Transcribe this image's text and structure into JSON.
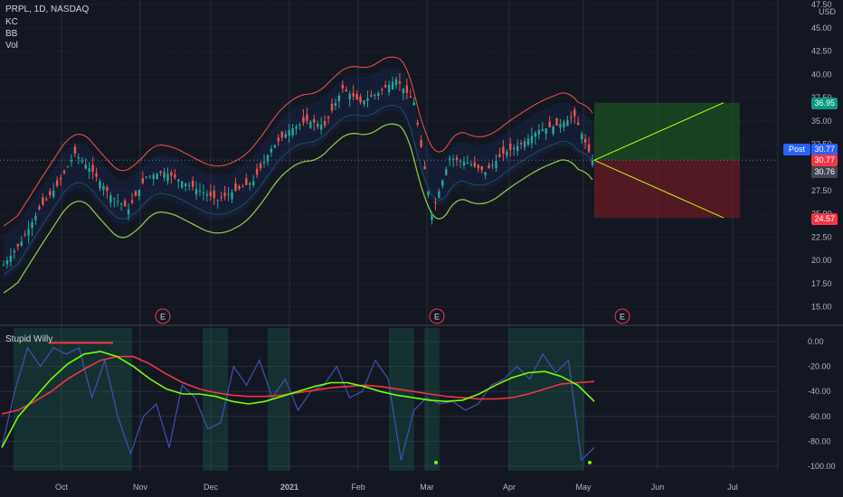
{
  "legend": {
    "symbol": "PRPL, 1D, NASDAQ",
    "kc": "KC",
    "bb": "BB",
    "vol": "Vol",
    "oscillator": "Stupid Willy"
  },
  "axis": {
    "currency": "USD",
    "price_ticks": [
      "47.50",
      "45.00",
      "42.50",
      "40.00",
      "37.50",
      "35.00",
      "32.50",
      "30.00",
      "27.50",
      "25.00",
      "22.50",
      "20.00",
      "17.50",
      "15.00"
    ],
    "osc_ticks": [
      "0.00",
      "-20.00",
      "-40.00",
      "-60.00",
      "-80.00",
      "-100.00"
    ],
    "months": [
      "Oct",
      "Nov",
      "Dec",
      "2021",
      "Feb",
      "Mar",
      "Apr",
      "May",
      "Jun",
      "Jul"
    ]
  },
  "tags": {
    "target": "36.95",
    "post_label": "Post",
    "post_value": "30.77",
    "last": "30.77",
    "prev": "30.76",
    "stop": "24.57"
  },
  "earnings_marker": "E",
  "colors": {
    "up": "#26a69a",
    "down": "#ef5350",
    "kc": "#ef5350",
    "bb": "#8bc34a",
    "osc_line": "#3f51b5",
    "osc_fast": "#76ff03",
    "osc_slow": "#f23645",
    "target_zone": "#1b5e20",
    "stop_zone": "#6d1b22"
  },
  "chart_data": {
    "type": "candlestick",
    "symbol": "PRPL",
    "interval": "1D",
    "exchange": "NASDAQ",
    "price_range": [
      13.5,
      48
    ],
    "position": {
      "entry": 30.77,
      "target": 36.95,
      "stop": 24.57
    },
    "close_path": [
      {
        "date": "2020-09-14",
        "close": 19.5
      },
      {
        "date": "2020-09-21",
        "close": 22.0
      },
      {
        "date": "2020-09-28",
        "close": 25.5
      },
      {
        "date": "2020-10-05",
        "close": 28.0
      },
      {
        "date": "2020-10-12",
        "close": 31.5
      },
      {
        "date": "2020-10-19",
        "close": 29.5
      },
      {
        "date": "2020-10-26",
        "close": 27.0
      },
      {
        "date": "2020-11-02",
        "close": 25.5
      },
      {
        "date": "2020-11-09",
        "close": 29.0
      },
      {
        "date": "2020-11-16",
        "close": 29.5
      },
      {
        "date": "2020-11-23",
        "close": 28.5
      },
      {
        "date": "2020-11-30",
        "close": 27.5
      },
      {
        "date": "2020-12-07",
        "close": 26.5
      },
      {
        "date": "2020-12-14",
        "close": 27.5
      },
      {
        "date": "2020-12-21",
        "close": 28.5
      },
      {
        "date": "2020-12-28",
        "close": 32.0
      },
      {
        "date": "2021-01-04",
        "close": 34.0
      },
      {
        "date": "2021-01-11",
        "close": 35.0
      },
      {
        "date": "2021-01-18",
        "close": 34.5
      },
      {
        "date": "2021-01-25",
        "close": 38.5
      },
      {
        "date": "2021-02-01",
        "close": 37.0
      },
      {
        "date": "2021-02-08",
        "close": 38.0
      },
      {
        "date": "2021-02-15",
        "close": 39.5
      },
      {
        "date": "2021-02-22",
        "close": 37.0
      },
      {
        "date": "2021-03-01",
        "close": 25.0
      },
      {
        "date": "2021-03-08",
        "close": 31.0
      },
      {
        "date": "2021-03-15",
        "close": 30.5
      },
      {
        "date": "2021-03-22",
        "close": 29.5
      },
      {
        "date": "2021-03-29",
        "close": 31.5
      },
      {
        "date": "2021-04-05",
        "close": 32.5
      },
      {
        "date": "2021-04-12",
        "close": 34.0
      },
      {
        "date": "2021-04-19",
        "close": 34.5
      },
      {
        "date": "2021-04-26",
        "close": 35.5
      },
      {
        "date": "2021-05-03",
        "close": 30.77
      }
    ],
    "oscillator": {
      "name": "Stupid Willy",
      "range": [
        -100,
        0
      ],
      "values": [
        -85,
        -40,
        -5,
        -20,
        -5,
        -10,
        -5,
        -45,
        -15,
        -60,
        -90,
        -60,
        -50,
        -85,
        -35,
        -45,
        -70,
        -65,
        -20,
        -35,
        -15,
        -45,
        -30,
        -55,
        -40,
        -35,
        -20,
        -45,
        -40,
        -15,
        -30,
        -95,
        -55,
        -45,
        -50,
        -48,
        -55,
        -50,
        -35,
        -30,
        -20,
        -30,
        -10,
        -25,
        -15,
        -95,
        -85
      ],
      "fast": [
        -85,
        -60,
        -45,
        -30,
        -18,
        -10,
        -8,
        -12,
        -20,
        -30,
        -38,
        -42,
        -42,
        -44,
        -48,
        -50,
        -48,
        -44,
        -40,
        -36,
        -33,
        -33,
        -36,
        -40,
        -43,
        -45,
        -47,
        -48,
        -47,
        -42,
        -35,
        -29,
        -25,
        -24,
        -28,
        -35,
        -48
      ],
      "slow": [
        -58,
        -55,
        -48,
        -40,
        -30,
        -22,
        -15,
        -12,
        -12,
        -18,
        -26,
        -33,
        -38,
        -41,
        -43,
        -44,
        -44,
        -43,
        -41,
        -39,
        -37,
        -36,
        -35,
        -36,
        -38,
        -40,
        -42,
        -44,
        -45,
        -46,
        -46,
        -45,
        -42,
        -38,
        -34,
        -33,
        -32
      ]
    }
  }
}
